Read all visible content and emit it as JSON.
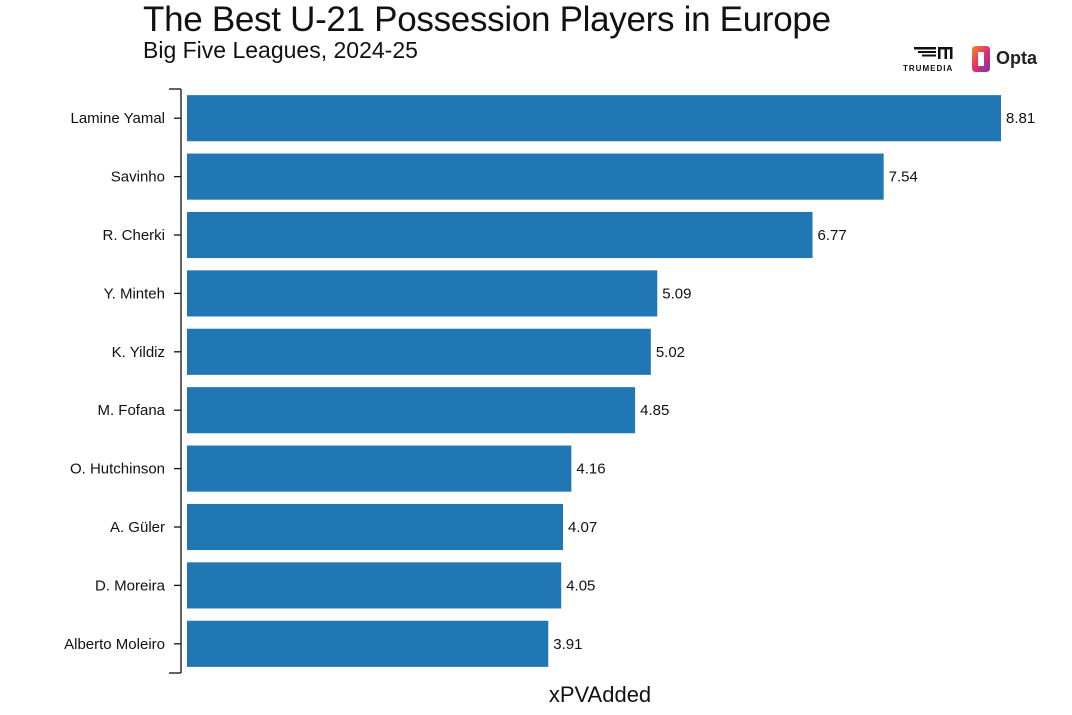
{
  "chart_data": {
    "type": "bar",
    "orientation": "horizontal",
    "title": "The Best U-21 Possession Players in Europe",
    "subtitle": "Big Five Leagues, 2024-25",
    "xlabel": "xPVAdded",
    "ylabel": "",
    "categories": [
      "Lamine Yamal",
      "Savinho",
      "R. Cherki",
      "Y. Minteh",
      "K. Yildiz",
      "M. Fofana",
      "O. Hutchinson",
      "A. Güler",
      "D. Moreira",
      "Alberto Moleiro"
    ],
    "values": [
      8.81,
      7.54,
      6.77,
      5.09,
      5.02,
      4.85,
      4.16,
      4.07,
      4.05,
      3.91
    ],
    "value_labels": [
      "8.81",
      "7.54",
      "6.77",
      "5.09",
      "5.02",
      "4.85",
      "4.16",
      "4.07",
      "4.05",
      "3.91"
    ],
    "xlim": [
      0,
      8.81
    ],
    "grid": false,
    "legend": "none",
    "bar_color": "#2077B4"
  },
  "logos": {
    "trumedia": "TRUMEDIA",
    "opta": "Opta"
  }
}
